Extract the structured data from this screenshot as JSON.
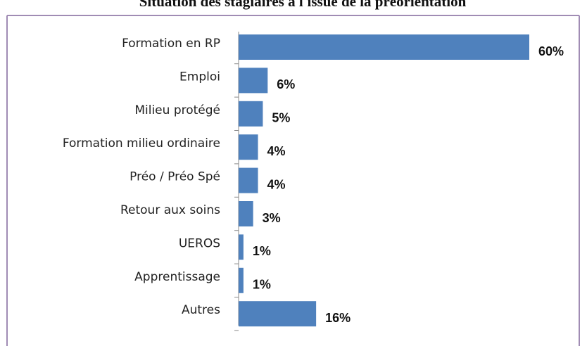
{
  "chart_data": {
    "type": "bar",
    "orientation": "horizontal",
    "title": "Situation des stagiaires à l'issue de la préorientation",
    "categories": [
      "Formation en RP",
      "Emploi",
      "Milieu protégé",
      "Formation milieu ordinaire",
      "Préo / Préo Spé",
      "Retour aux soins",
      "UEROS",
      "Apprentissage",
      "Autres"
    ],
    "values": [
      60,
      6,
      5,
      4,
      4,
      3,
      1,
      1,
      16
    ],
    "value_labels": [
      "60%",
      "6%",
      "5%",
      "4%",
      "4%",
      "3%",
      "1%",
      "1%",
      "16%"
    ],
    "color": "#4f81bd"
  }
}
